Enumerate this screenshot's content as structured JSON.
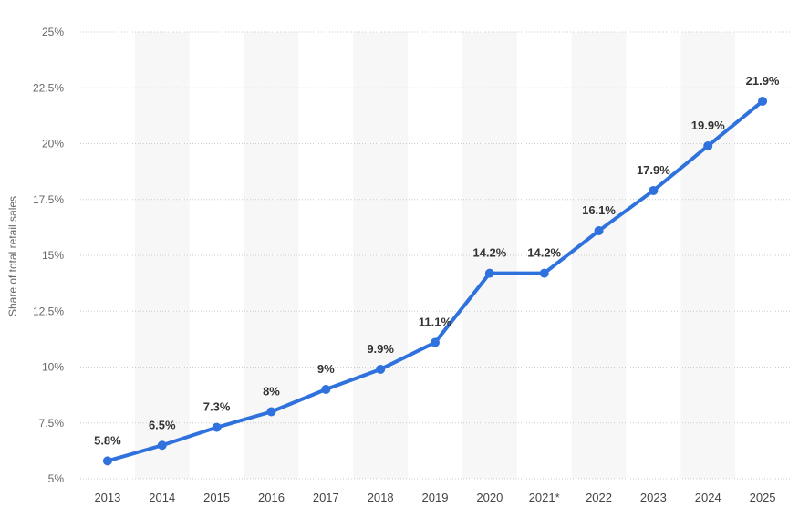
{
  "chart_data": {
    "type": "line",
    "title": "",
    "xlabel": "",
    "ylabel": "Share of total retail sales",
    "categories": [
      "2013",
      "2014",
      "2015",
      "2016",
      "2017",
      "2018",
      "2019",
      "2020",
      "2021*",
      "2022",
      "2023",
      "2024",
      "2025"
    ],
    "series": [
      {
        "values": [
          5.8,
          6.5,
          7.3,
          8,
          9,
          9.9,
          11.1,
          14.2,
          14.2,
          16.1,
          17.9,
          19.9,
          21.9
        ],
        "labels": [
          "5.8%",
          "6.5%",
          "7.3%",
          "8%",
          "9%",
          "9.9%",
          "11.1%",
          "14.2%",
          "14.2%",
          "16.1%",
          "17.9%",
          "19.9%",
          "21.9%"
        ],
        "color": "#2f72dd"
      }
    ],
    "ylim": [
      5,
      25
    ],
    "yticks": [
      5,
      7.5,
      10,
      12.5,
      15,
      17.5,
      20,
      22.5,
      25
    ],
    "ytick_labels": [
      "5%",
      "7.5%",
      "10%",
      "12.5%",
      "15%",
      "17.5%",
      "20%",
      "22.5%",
      "25%"
    ],
    "grid": true,
    "alternating_column_bands": true,
    "band_color": "#f7f7f7",
    "grid_color": "#cccccc",
    "legend": "none"
  }
}
